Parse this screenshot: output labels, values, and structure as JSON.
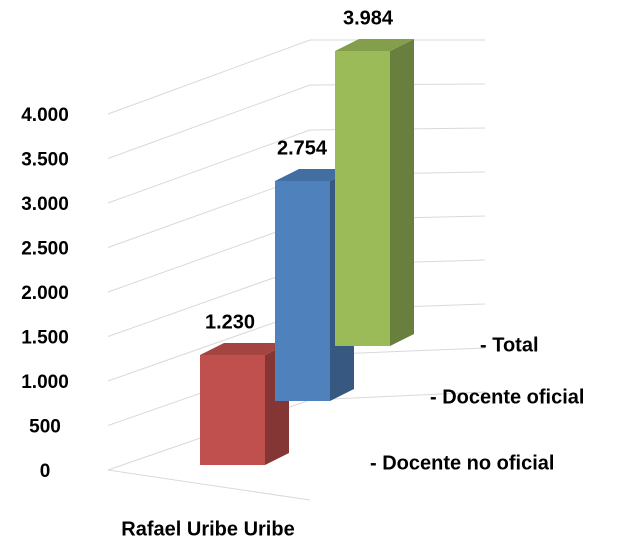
{
  "chart_data": {
    "type": "bar3d",
    "categories": [
      "Rafael Uribe Uribe"
    ],
    "series": [
      {
        "name": "- Docente no oficial",
        "color": "#c0504d",
        "values": [
          1230
        ],
        "value_labels": [
          "1.230"
        ]
      },
      {
        "name": "- Docente oficial",
        "color": "#4f81bd",
        "values": [
          2754
        ],
        "value_labels": [
          "2.754"
        ]
      },
      {
        "name": "- Total",
        "color": "#9bbb59",
        "values": [
          3984
        ],
        "value_labels": [
          "3.984"
        ]
      }
    ],
    "ylim": [
      0,
      4000
    ],
    "yticks": [
      0,
      500,
      {
        "value": 1000,
        "label": "1.000"
      },
      {
        "value": 1500,
        "label": "1.500"
      },
      {
        "value": 2000,
        "label": "2.000"
      },
      {
        "value": 2500,
        "label": "2.500"
      },
      {
        "value": 3000,
        "label": "3.000"
      },
      {
        "value": 3500,
        "label": "3.500"
      },
      {
        "value": 4000,
        "label": "4.000"
      }
    ],
    "grid": true
  }
}
